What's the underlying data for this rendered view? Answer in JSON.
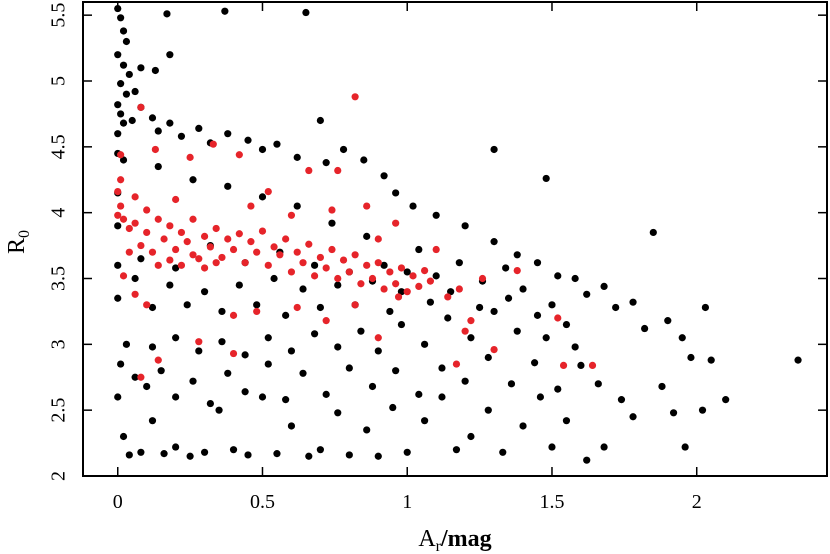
{
  "chart_data": {
    "type": "scatter",
    "title": "",
    "xlabel": {
      "main": "A",
      "sub": "r",
      "rest": "/mag"
    },
    "ylabel": {
      "main": "R",
      "sub": "0"
    },
    "xlim": [
      -0.12,
      2.45
    ],
    "ylim": [
      2.0,
      5.6
    ],
    "xticks": [
      0,
      0.5,
      1,
      1.5,
      2
    ],
    "xtick_labels": [
      "0",
      "0.5",
      "1",
      "1.5",
      "2"
    ],
    "yticks": [
      2,
      2.5,
      3,
      3.5,
      4,
      4.5,
      5,
      5.5
    ],
    "ytick_labels": [
      "2",
      "2.5",
      "3",
      "3.5",
      "4",
      "4.5",
      "5",
      "5.5"
    ],
    "grid": false,
    "legend": "none",
    "series": [
      {
        "color": "#000000",
        "points": [
          [
            0.0,
            5.55
          ],
          [
            0.01,
            5.48
          ],
          [
            0.02,
            5.38
          ],
          [
            0.03,
            5.3
          ],
          [
            0.0,
            5.2
          ],
          [
            0.02,
            5.12
          ],
          [
            0.04,
            5.05
          ],
          [
            0.01,
            4.98
          ],
          [
            0.03,
            4.9
          ],
          [
            0.0,
            4.82
          ],
          [
            0.06,
            4.92
          ],
          [
            0.08,
            5.1
          ],
          [
            0.13,
            5.08
          ],
          [
            0.18,
            5.2
          ],
          [
            0.17,
            5.51
          ],
          [
            0.37,
            5.53
          ],
          [
            0.65,
            5.52
          ],
          [
            0.01,
            4.75
          ],
          [
            0.02,
            4.68
          ],
          [
            0.05,
            4.7
          ],
          [
            0.08,
            4.8
          ],
          [
            0.12,
            4.72
          ],
          [
            0.14,
            4.62
          ],
          [
            0.18,
            4.68
          ],
          [
            0.22,
            4.58
          ],
          [
            0.28,
            4.64
          ],
          [
            0.32,
            4.53
          ],
          [
            0.38,
            4.6
          ],
          [
            0.45,
            4.55
          ],
          [
            0.5,
            4.48
          ],
          [
            0.55,
            4.52
          ],
          [
            0.62,
            4.42
          ],
          [
            0.7,
            4.7
          ],
          [
            0.72,
            4.38
          ],
          [
            0.78,
            4.48
          ],
          [
            0.85,
            4.4
          ],
          [
            0.92,
            4.28
          ],
          [
            0.96,
            4.15
          ],
          [
            1.02,
            4.05
          ],
          [
            1.1,
            3.98
          ],
          [
            1.2,
            3.9
          ],
          [
            1.3,
            4.48
          ],
          [
            1.3,
            3.78
          ],
          [
            1.38,
            3.68
          ],
          [
            1.45,
            3.62
          ],
          [
            1.48,
            4.26
          ],
          [
            1.52,
            3.52
          ],
          [
            1.58,
            3.5
          ],
          [
            1.62,
            3.38
          ],
          [
            1.68,
            3.44
          ],
          [
            1.72,
            3.28
          ],
          [
            1.78,
            3.32
          ],
          [
            1.82,
            3.12
          ],
          [
            1.85,
            3.85
          ],
          [
            1.9,
            3.18
          ],
          [
            1.95,
            3.05
          ],
          [
            1.98,
            2.9
          ],
          [
            2.03,
            3.28
          ],
          [
            2.05,
            2.88
          ],
          [
            2.1,
            2.58
          ],
          [
            2.02,
            2.5
          ],
          [
            1.96,
            2.22
          ],
          [
            2.35,
            2.88
          ],
          [
            1.92,
            2.48
          ],
          [
            1.88,
            2.68
          ],
          [
            1.78,
            2.45
          ],
          [
            1.74,
            2.58
          ],
          [
            1.68,
            2.22
          ],
          [
            1.62,
            2.12
          ],
          [
            1.55,
            2.42
          ],
          [
            1.5,
            2.22
          ],
          [
            1.46,
            2.6
          ],
          [
            1.4,
            2.38
          ],
          [
            1.33,
            2.18
          ],
          [
            1.28,
            2.5
          ],
          [
            1.22,
            2.3
          ],
          [
            1.17,
            2.2
          ],
          [
            1.12,
            2.6
          ],
          [
            1.06,
            2.42
          ],
          [
            1.0,
            2.18
          ],
          [
            0.95,
            2.52
          ],
          [
            0.9,
            2.15
          ],
          [
            0.86,
            2.35
          ],
          [
            0.8,
            2.16
          ],
          [
            0.76,
            2.48
          ],
          [
            0.7,
            2.2
          ],
          [
            0.66,
            2.15
          ],
          [
            0.6,
            2.38
          ],
          [
            0.55,
            2.17
          ],
          [
            0.5,
            2.6
          ],
          [
            0.45,
            2.16
          ],
          [
            0.4,
            2.2
          ],
          [
            0.35,
            2.5
          ],
          [
            0.3,
            2.18
          ],
          [
            0.25,
            2.15
          ],
          [
            0.2,
            2.22
          ],
          [
            0.16,
            2.17
          ],
          [
            0.12,
            2.42
          ],
          [
            0.08,
            2.18
          ],
          [
            0.04,
            2.16
          ],
          [
            0.02,
            2.3
          ],
          [
            0.0,
            2.6
          ],
          [
            0.01,
            2.85
          ],
          [
            0.03,
            3.0
          ],
          [
            0.06,
            2.75
          ],
          [
            0.1,
            2.68
          ],
          [
            0.15,
            2.8
          ],
          [
            0.2,
            2.6
          ],
          [
            0.26,
            2.72
          ],
          [
            0.32,
            2.55
          ],
          [
            0.38,
            2.78
          ],
          [
            0.44,
            2.64
          ],
          [
            0.52,
            2.85
          ],
          [
            0.58,
            2.58
          ],
          [
            0.64,
            2.78
          ],
          [
            0.72,
            2.62
          ],
          [
            0.8,
            2.82
          ],
          [
            0.88,
            2.68
          ],
          [
            0.96,
            2.8
          ],
          [
            1.04,
            2.62
          ],
          [
            1.12,
            2.82
          ],
          [
            1.2,
            2.72
          ],
          [
            1.28,
            2.9
          ],
          [
            1.36,
            2.7
          ],
          [
            1.44,
            2.86
          ],
          [
            1.52,
            2.66
          ],
          [
            1.6,
            2.84
          ],
          [
            1.66,
            2.7
          ],
          [
            1.58,
            2.98
          ],
          [
            1.48,
            3.05
          ],
          [
            1.38,
            3.1
          ],
          [
            1.3,
            3.25
          ],
          [
            1.22,
            3.05
          ],
          [
            1.14,
            3.2
          ],
          [
            1.06,
            3.0
          ],
          [
            0.98,
            3.15
          ],
          [
            0.9,
            2.95
          ],
          [
            0.84,
            3.1
          ],
          [
            0.76,
            2.98
          ],
          [
            0.68,
            3.08
          ],
          [
            0.6,
            2.95
          ],
          [
            0.52,
            3.05
          ],
          [
            0.44,
            2.92
          ],
          [
            0.36,
            3.02
          ],
          [
            0.28,
            2.95
          ],
          [
            0.2,
            3.05
          ],
          [
            0.12,
            2.98
          ],
          [
            1.4,
            3.42
          ],
          [
            1.34,
            3.58
          ],
          [
            1.26,
            3.48
          ],
          [
            1.18,
            3.62
          ],
          [
            1.1,
            3.52
          ],
          [
            1.04,
            3.72
          ],
          [
            0.98,
            3.4
          ],
          [
            0.92,
            3.6
          ],
          [
            0.86,
            3.82
          ],
          [
            0.8,
            3.55
          ],
          [
            0.74,
            3.92
          ],
          [
            0.68,
            3.6
          ],
          [
            0.62,
            4.05
          ],
          [
            0.56,
            3.7
          ],
          [
            0.5,
            4.12
          ],
          [
            0.44,
            3.62
          ],
          [
            0.38,
            4.2
          ],
          [
            0.32,
            3.75
          ],
          [
            0.26,
            4.25
          ],
          [
            0.2,
            3.58
          ],
          [
            0.14,
            4.35
          ],
          [
            0.08,
            3.65
          ],
          [
            0.02,
            4.4
          ],
          [
            1.5,
            3.3
          ],
          [
            1.55,
            3.15
          ],
          [
            1.45,
            3.22
          ],
          [
            1.35,
            3.35
          ],
          [
            1.25,
            3.28
          ],
          [
            1.15,
            3.4
          ],
          [
            1.08,
            3.32
          ],
          [
            1.0,
            3.55
          ],
          [
            0.94,
            3.25
          ],
          [
            0.88,
            3.48
          ],
          [
            0.82,
            3.3
          ],
          [
            0.76,
            3.45
          ],
          [
            0.7,
            3.28
          ],
          [
            0.64,
            3.42
          ],
          [
            0.58,
            3.22
          ],
          [
            0.54,
            3.5
          ],
          [
            0.48,
            3.3
          ],
          [
            0.42,
            3.45
          ],
          [
            0.36,
            3.25
          ],
          [
            0.3,
            3.4
          ],
          [
            0.24,
            3.3
          ],
          [
            0.18,
            3.45
          ],
          [
            0.12,
            3.28
          ],
          [
            0.06,
            3.5
          ],
          [
            0.0,
            3.35
          ],
          [
            0.0,
            3.6
          ],
          [
            0.0,
            3.9
          ],
          [
            0.0,
            4.15
          ],
          [
            0.0,
            4.45
          ],
          [
            0.0,
            4.6
          ]
        ]
      },
      {
        "color": "#e6242a",
        "points": [
          [
            0.01,
            4.25
          ],
          [
            0.0,
            4.16
          ],
          [
            0.01,
            4.05
          ],
          [
            0.02,
            3.95
          ],
          [
            0.04,
            3.88
          ],
          [
            0.06,
            3.92
          ],
          [
            0.08,
            3.75
          ],
          [
            0.1,
            3.85
          ],
          [
            0.12,
            3.7
          ],
          [
            0.14,
            3.95
          ],
          [
            0.16,
            3.8
          ],
          [
            0.18,
            3.9
          ],
          [
            0.2,
            3.72
          ],
          [
            0.22,
            3.85
          ],
          [
            0.24,
            3.78
          ],
          [
            0.26,
            3.95
          ],
          [
            0.28,
            3.65
          ],
          [
            0.3,
            3.82
          ],
          [
            0.32,
            3.74
          ],
          [
            0.34,
            3.88
          ],
          [
            0.36,
            3.66
          ],
          [
            0.38,
            3.8
          ],
          [
            0.4,
            3.72
          ],
          [
            0.42,
            3.84
          ],
          [
            0.44,
            3.62
          ],
          [
            0.46,
            3.78
          ],
          [
            0.48,
            3.7
          ],
          [
            0.5,
            3.86
          ],
          [
            0.52,
            3.6
          ],
          [
            0.54,
            3.74
          ],
          [
            0.56,
            3.68
          ],
          [
            0.58,
            3.8
          ],
          [
            0.6,
            3.55
          ],
          [
            0.62,
            3.7
          ],
          [
            0.64,
            3.62
          ],
          [
            0.66,
            3.76
          ],
          [
            0.68,
            3.52
          ],
          [
            0.7,
            3.66
          ],
          [
            0.72,
            3.58
          ],
          [
            0.74,
            3.72
          ],
          [
            0.76,
            3.5
          ],
          [
            0.78,
            3.64
          ],
          [
            0.8,
            3.55
          ],
          [
            0.82,
            3.68
          ],
          [
            0.84,
            3.46
          ],
          [
            0.86,
            3.6
          ],
          [
            0.88,
            3.5
          ],
          [
            0.9,
            3.62
          ],
          [
            0.92,
            3.42
          ],
          [
            0.94,
            3.55
          ],
          [
            0.96,
            3.46
          ],
          [
            0.98,
            3.58
          ],
          [
            1.0,
            3.4
          ],
          [
            1.02,
            3.52
          ],
          [
            1.04,
            3.44
          ],
          [
            1.06,
            3.56
          ],
          [
            1.08,
            3.48
          ],
          [
            1.1,
            3.72
          ],
          [
            1.14,
            3.36
          ],
          [
            1.18,
            3.42
          ],
          [
            1.22,
            3.18
          ],
          [
            1.26,
            3.5
          ],
          [
            1.2,
            3.1
          ],
          [
            1.3,
            2.96
          ],
          [
            1.38,
            3.56
          ],
          [
            1.17,
            2.85
          ],
          [
            1.52,
            3.2
          ],
          [
            1.54,
            2.84
          ],
          [
            1.64,
            2.84
          ],
          [
            0.82,
            4.88
          ],
          [
            0.76,
            4.32
          ],
          [
            0.66,
            4.32
          ],
          [
            0.52,
            4.16
          ],
          [
            0.42,
            4.44
          ],
          [
            0.33,
            4.52
          ],
          [
            0.25,
            4.42
          ],
          [
            0.13,
            4.48
          ],
          [
            0.08,
            4.8
          ],
          [
            0.01,
            4.44
          ],
          [
            0.02,
            3.52
          ],
          [
            0.06,
            3.38
          ],
          [
            0.1,
            3.3
          ],
          [
            0.14,
            2.88
          ],
          [
            0.08,
            2.75
          ],
          [
            0.28,
            3.02
          ],
          [
            0.4,
            2.93
          ],
          [
            0.4,
            3.22
          ],
          [
            0.48,
            3.25
          ],
          [
            0.62,
            3.28
          ],
          [
            0.72,
            3.18
          ],
          [
            0.9,
            3.05
          ],
          [
            0.97,
            3.36
          ],
          [
            0.82,
            3.3
          ],
          [
            0.86,
            4.05
          ],
          [
            0.9,
            3.8
          ],
          [
            0.96,
            3.92
          ],
          [
            0.74,
            4.02
          ],
          [
            0.6,
            3.98
          ],
          [
            0.46,
            4.05
          ],
          [
            0.2,
            4.1
          ],
          [
            0.06,
            4.12
          ],
          [
            0.1,
            4.02
          ],
          [
            0.14,
            3.6
          ],
          [
            0.18,
            3.64
          ],
          [
            0.22,
            3.6
          ],
          [
            0.26,
            3.68
          ],
          [
            0.3,
            3.58
          ],
          [
            0.34,
            3.62
          ],
          [
            0.04,
            3.7
          ],
          [
            0.0,
            3.98
          ]
        ]
      }
    ]
  }
}
